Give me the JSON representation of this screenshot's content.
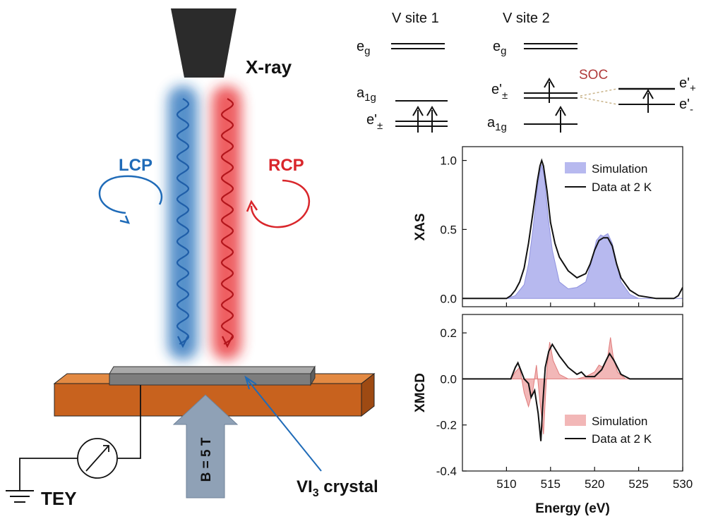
{
  "labels": {
    "xray": "X-ray",
    "lcp": "LCP",
    "rcp": "RCP",
    "tey": "TEY",
    "field": "B = 5 T",
    "crystal_main": "VI",
    "crystal_sub": "3",
    "crystal_rest": " crystal"
  },
  "levels": {
    "site1_title": "V site 1",
    "site2_title": "V site 2",
    "eg": "e",
    "eg_sub": "g",
    "a1g": "a",
    "a1g_sub": "1g",
    "epm": "e'",
    "epm_sub": "±",
    "ep": "e'",
    "ep_sub": "+",
    "em": "e'",
    "em_sub": "-",
    "soc": "SOC"
  },
  "colors": {
    "lcp": "#1f6bb8",
    "rcp": "#d9262b",
    "soc": "#b03a3a",
    "platform": "#c8621e",
    "crystal": "#7d7d7d",
    "field_arrow": "#8fa1b6",
    "xas_fill": "#b7b9ef",
    "xmcd_fill": "#f2b7b7"
  },
  "chart_data": [
    {
      "type": "area",
      "title": "",
      "xlabel": "",
      "ylabel": "XAS",
      "xlim": [
        505,
        530
      ],
      "ylim": [
        -0.06,
        1.1
      ],
      "yticks": [
        "0.0",
        "0.5",
        "1.0"
      ],
      "grid": false,
      "legend": [
        "Simulation",
        "Data at 2 K"
      ],
      "series": [
        {
          "name": "Simulation",
          "x": [
            505,
            510,
            511,
            512,
            512.5,
            513,
            513.5,
            513.8,
            514.0,
            514.3,
            514.7,
            515.2,
            516,
            517,
            518,
            519,
            519.7,
            520.2,
            520.7,
            521.0,
            521.5,
            522,
            522.5,
            523,
            524,
            525,
            530
          ],
          "y": [
            0,
            0,
            0.02,
            0.1,
            0.25,
            0.5,
            0.8,
            0.92,
            0.97,
            0.88,
            0.6,
            0.35,
            0.12,
            0.07,
            0.08,
            0.12,
            0.28,
            0.42,
            0.46,
            0.45,
            0.47,
            0.4,
            0.26,
            0.12,
            0.03,
            0,
            0
          ]
        },
        {
          "name": "Data at 2 K",
          "x": [
            505,
            510,
            510.5,
            511,
            511.5,
            512,
            512.5,
            513,
            513.5,
            513.8,
            514.0,
            514.2,
            514.6,
            515,
            515.5,
            516,
            517,
            518,
            519,
            519.5,
            520,
            520.5,
            521,
            521.5,
            522,
            522.5,
            523,
            524,
            525,
            527,
            529,
            529.5,
            530
          ],
          "y": [
            0,
            0,
            0.02,
            0.06,
            0.12,
            0.22,
            0.4,
            0.62,
            0.85,
            0.96,
            1.0,
            0.96,
            0.78,
            0.55,
            0.4,
            0.3,
            0.2,
            0.15,
            0.18,
            0.25,
            0.35,
            0.42,
            0.44,
            0.44,
            0.38,
            0.25,
            0.15,
            0.06,
            0.02,
            0.0,
            0.0,
            0.02,
            0.08
          ]
        }
      ]
    },
    {
      "type": "area",
      "title": "",
      "xlabel": "Energy (eV)",
      "ylabel": "XMCD",
      "xlim": [
        505,
        530
      ],
      "ylim": [
        -0.4,
        0.28
      ],
      "xticks": [
        "510",
        "515",
        "520",
        "525",
        "530"
      ],
      "xtick_values": [
        510,
        515,
        520,
        525,
        530
      ],
      "yticks": [
        "-0.4",
        "-0.2",
        "0.0",
        "0.2"
      ],
      "ytick_values": [
        -0.4,
        -0.2,
        0.0,
        0.2
      ],
      "grid": false,
      "legend": [
        "Simulation",
        "Data at 2 K"
      ],
      "series": [
        {
          "name": "Simulation",
          "x": [
            505,
            510.5,
            511,
            511.5,
            512,
            512.5,
            513,
            513.4,
            513.8,
            514.2,
            514.6,
            514.9,
            515.3,
            516,
            517,
            518,
            519,
            520,
            520.5,
            521,
            521.5,
            521.8,
            522.1,
            522.6,
            523.5,
            525,
            530
          ],
          "y": [
            0,
            0,
            0.03,
            0.05,
            -0.06,
            -0.12,
            -0.05,
            0.06,
            -0.1,
            -0.24,
            0.05,
            0.16,
            0.08,
            0.02,
            0.0,
            0.0,
            0.01,
            0.03,
            0.06,
            0.05,
            0.1,
            0.18,
            0.1,
            0.03,
            0.0,
            0,
            0
          ]
        },
        {
          "name": "Data at 2 K",
          "x": [
            505,
            510.5,
            511,
            511.3,
            511.6,
            512,
            512.5,
            512.8,
            513.2,
            513.6,
            513.9,
            514.1,
            514.4,
            514.8,
            515.2,
            516,
            517,
            518,
            518.5,
            519,
            520,
            520.8,
            521.3,
            521.7,
            522.2,
            523,
            524,
            525,
            530
          ],
          "y": [
            0,
            0,
            0.05,
            0.07,
            0.04,
            0.0,
            -0.02,
            -0.08,
            -0.05,
            -0.15,
            -0.27,
            -0.12,
            0.05,
            0.12,
            0.15,
            0.1,
            0.05,
            0.02,
            0.03,
            0.01,
            0.01,
            0.04,
            0.08,
            0.11,
            0.08,
            0.02,
            0.0,
            0,
            0
          ]
        }
      ]
    }
  ]
}
